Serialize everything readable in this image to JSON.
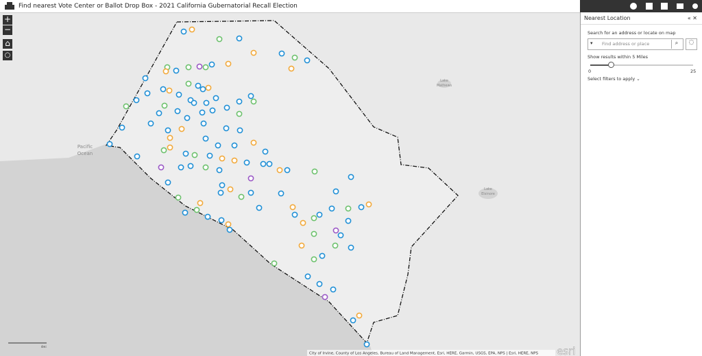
{
  "header": {
    "title": "Find nearest Vote Center or Ballot Drop Box - 2021 California Gubernatorial Recall Election"
  },
  "map": {
    "zoom_in": "+",
    "zoom_out": "−",
    "labels": [
      "Pacific",
      "Ocean",
      "Lake",
      "Mathews",
      "Lake",
      "Elsinore"
    ],
    "attribution": "City of Irvine, County of Los Angeles, Bureau of Land Management, Esri, HERE, Garmin, USGS, EPA, NPS | Esri, HERE, NPS",
    "logo": "esri",
    "scale": "4mi"
  },
  "panel": {
    "title": "Nearest Location",
    "search_hint": "Search for an address or locate on map",
    "search_placeholder": "Find address or place",
    "radius_text": "Show results within 5 Miles",
    "slider": {
      "min": 0,
      "max": 25,
      "value": 5
    },
    "filters": "Select filters to apply"
  }
}
